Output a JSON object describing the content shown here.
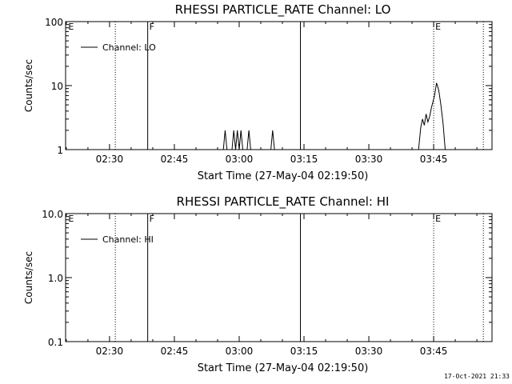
{
  "chart_data": [
    {
      "type": "line",
      "title": "RHESSI PARTICLE_RATE Channel: LO",
      "xlabel": "Start Time (27-May-04 02:19:50)",
      "ylabel": "Counts/sec",
      "yscale": "log",
      "xlim": [
        "02:19:50",
        "03:58:30"
      ],
      "ylim": [
        1,
        100
      ],
      "x_ticks": [
        "02:30",
        "02:45",
        "03:00",
        "03:15",
        "03:30",
        "03:45"
      ],
      "y_ticks": [
        {
          "value": 1,
          "label": "1"
        },
        {
          "value": 10,
          "label": "10"
        },
        {
          "value": 100,
          "label": "100"
        }
      ],
      "legend": {
        "entry": "Channel: LO",
        "placement": "top-left"
      },
      "markers": [
        {
          "time": "02:20:05",
          "label": "E",
          "style": "none"
        },
        {
          "time": "02:31:20",
          "label": "",
          "style": "dotted"
        },
        {
          "time": "02:38:50",
          "label": "F",
          "style": "solid"
        },
        {
          "time": "03:14:10",
          "label": "",
          "style": "solid"
        },
        {
          "time": "03:45:00",
          "label": "E",
          "style": "dotted"
        },
        {
          "time": "03:56:30",
          "label": "",
          "style": "dotted"
        }
      ],
      "series": [
        {
          "name": "Channel: LO",
          "segments": [
            [
              [
                "02:56:20",
                1
              ],
              [
                "02:56:45",
                2
              ],
              [
                "02:57:10",
                1
              ]
            ],
            [
              [
                "02:58:20",
                1
              ],
              [
                "02:58:45",
                2
              ],
              [
                "02:59:10",
                1
              ],
              [
                "02:59:35",
                2
              ],
              [
                "03:00:00",
                1
              ],
              [
                "03:00:25",
                2
              ],
              [
                "03:00:50",
                1
              ]
            ],
            [
              [
                "03:01:50",
                1
              ],
              [
                "03:02:15",
                2
              ],
              [
                "03:02:40",
                1
              ]
            ],
            [
              [
                "03:07:20",
                1
              ],
              [
                "03:07:45",
                2
              ],
              [
                "03:08:10",
                1
              ]
            ],
            [
              [
                "03:41:30",
                1
              ],
              [
                "03:42:00",
                2.2
              ],
              [
                "03:42:25",
                3
              ],
              [
                "03:42:50",
                2.4
              ],
              [
                "03:43:15",
                3.6
              ],
              [
                "03:43:40",
                2.7
              ],
              [
                "03:44:05",
                3.3
              ],
              [
                "03:44:30",
                4.6
              ],
              [
                "03:45:10",
                6.8
              ],
              [
                "03:45:40",
                11
              ],
              [
                "03:46:10",
                8.5
              ],
              [
                "03:46:40",
                5
              ],
              [
                "03:47:10",
                2.6
              ],
              [
                "03:47:40",
                1
              ]
            ]
          ]
        }
      ]
    },
    {
      "type": "line",
      "title": "RHESSI PARTICLE_RATE Channel: HI",
      "xlabel": "Start Time (27-May-04 02:19:50)",
      "ylabel": "Counts/sec",
      "yscale": "log",
      "xlim": [
        "02:19:50",
        "03:58:30"
      ],
      "ylim": [
        0.1,
        10
      ],
      "x_ticks": [
        "02:30",
        "02:45",
        "03:00",
        "03:15",
        "03:30",
        "03:45"
      ],
      "y_ticks": [
        {
          "value": 0.1,
          "label": "0.1"
        },
        {
          "value": 1,
          "label": "1.0"
        },
        {
          "value": 10,
          "label": "10.0"
        }
      ],
      "legend": {
        "entry": "Channel: HI",
        "placement": "top-left"
      },
      "markers": [
        {
          "time": "02:20:05",
          "label": "E",
          "style": "none"
        },
        {
          "time": "02:31:20",
          "label": "",
          "style": "dotted"
        },
        {
          "time": "02:38:50",
          "label": "F",
          "style": "solid"
        },
        {
          "time": "03:14:10",
          "label": "",
          "style": "solid"
        },
        {
          "time": "03:45:00",
          "label": "E",
          "style": "dotted"
        },
        {
          "time": "03:56:30",
          "label": "",
          "style": "dotted"
        }
      ],
      "series": [
        {
          "name": "Channel: HI",
          "segments": []
        }
      ]
    }
  ],
  "footer": {
    "timestamp": "17-Oct-2021 21:33"
  }
}
